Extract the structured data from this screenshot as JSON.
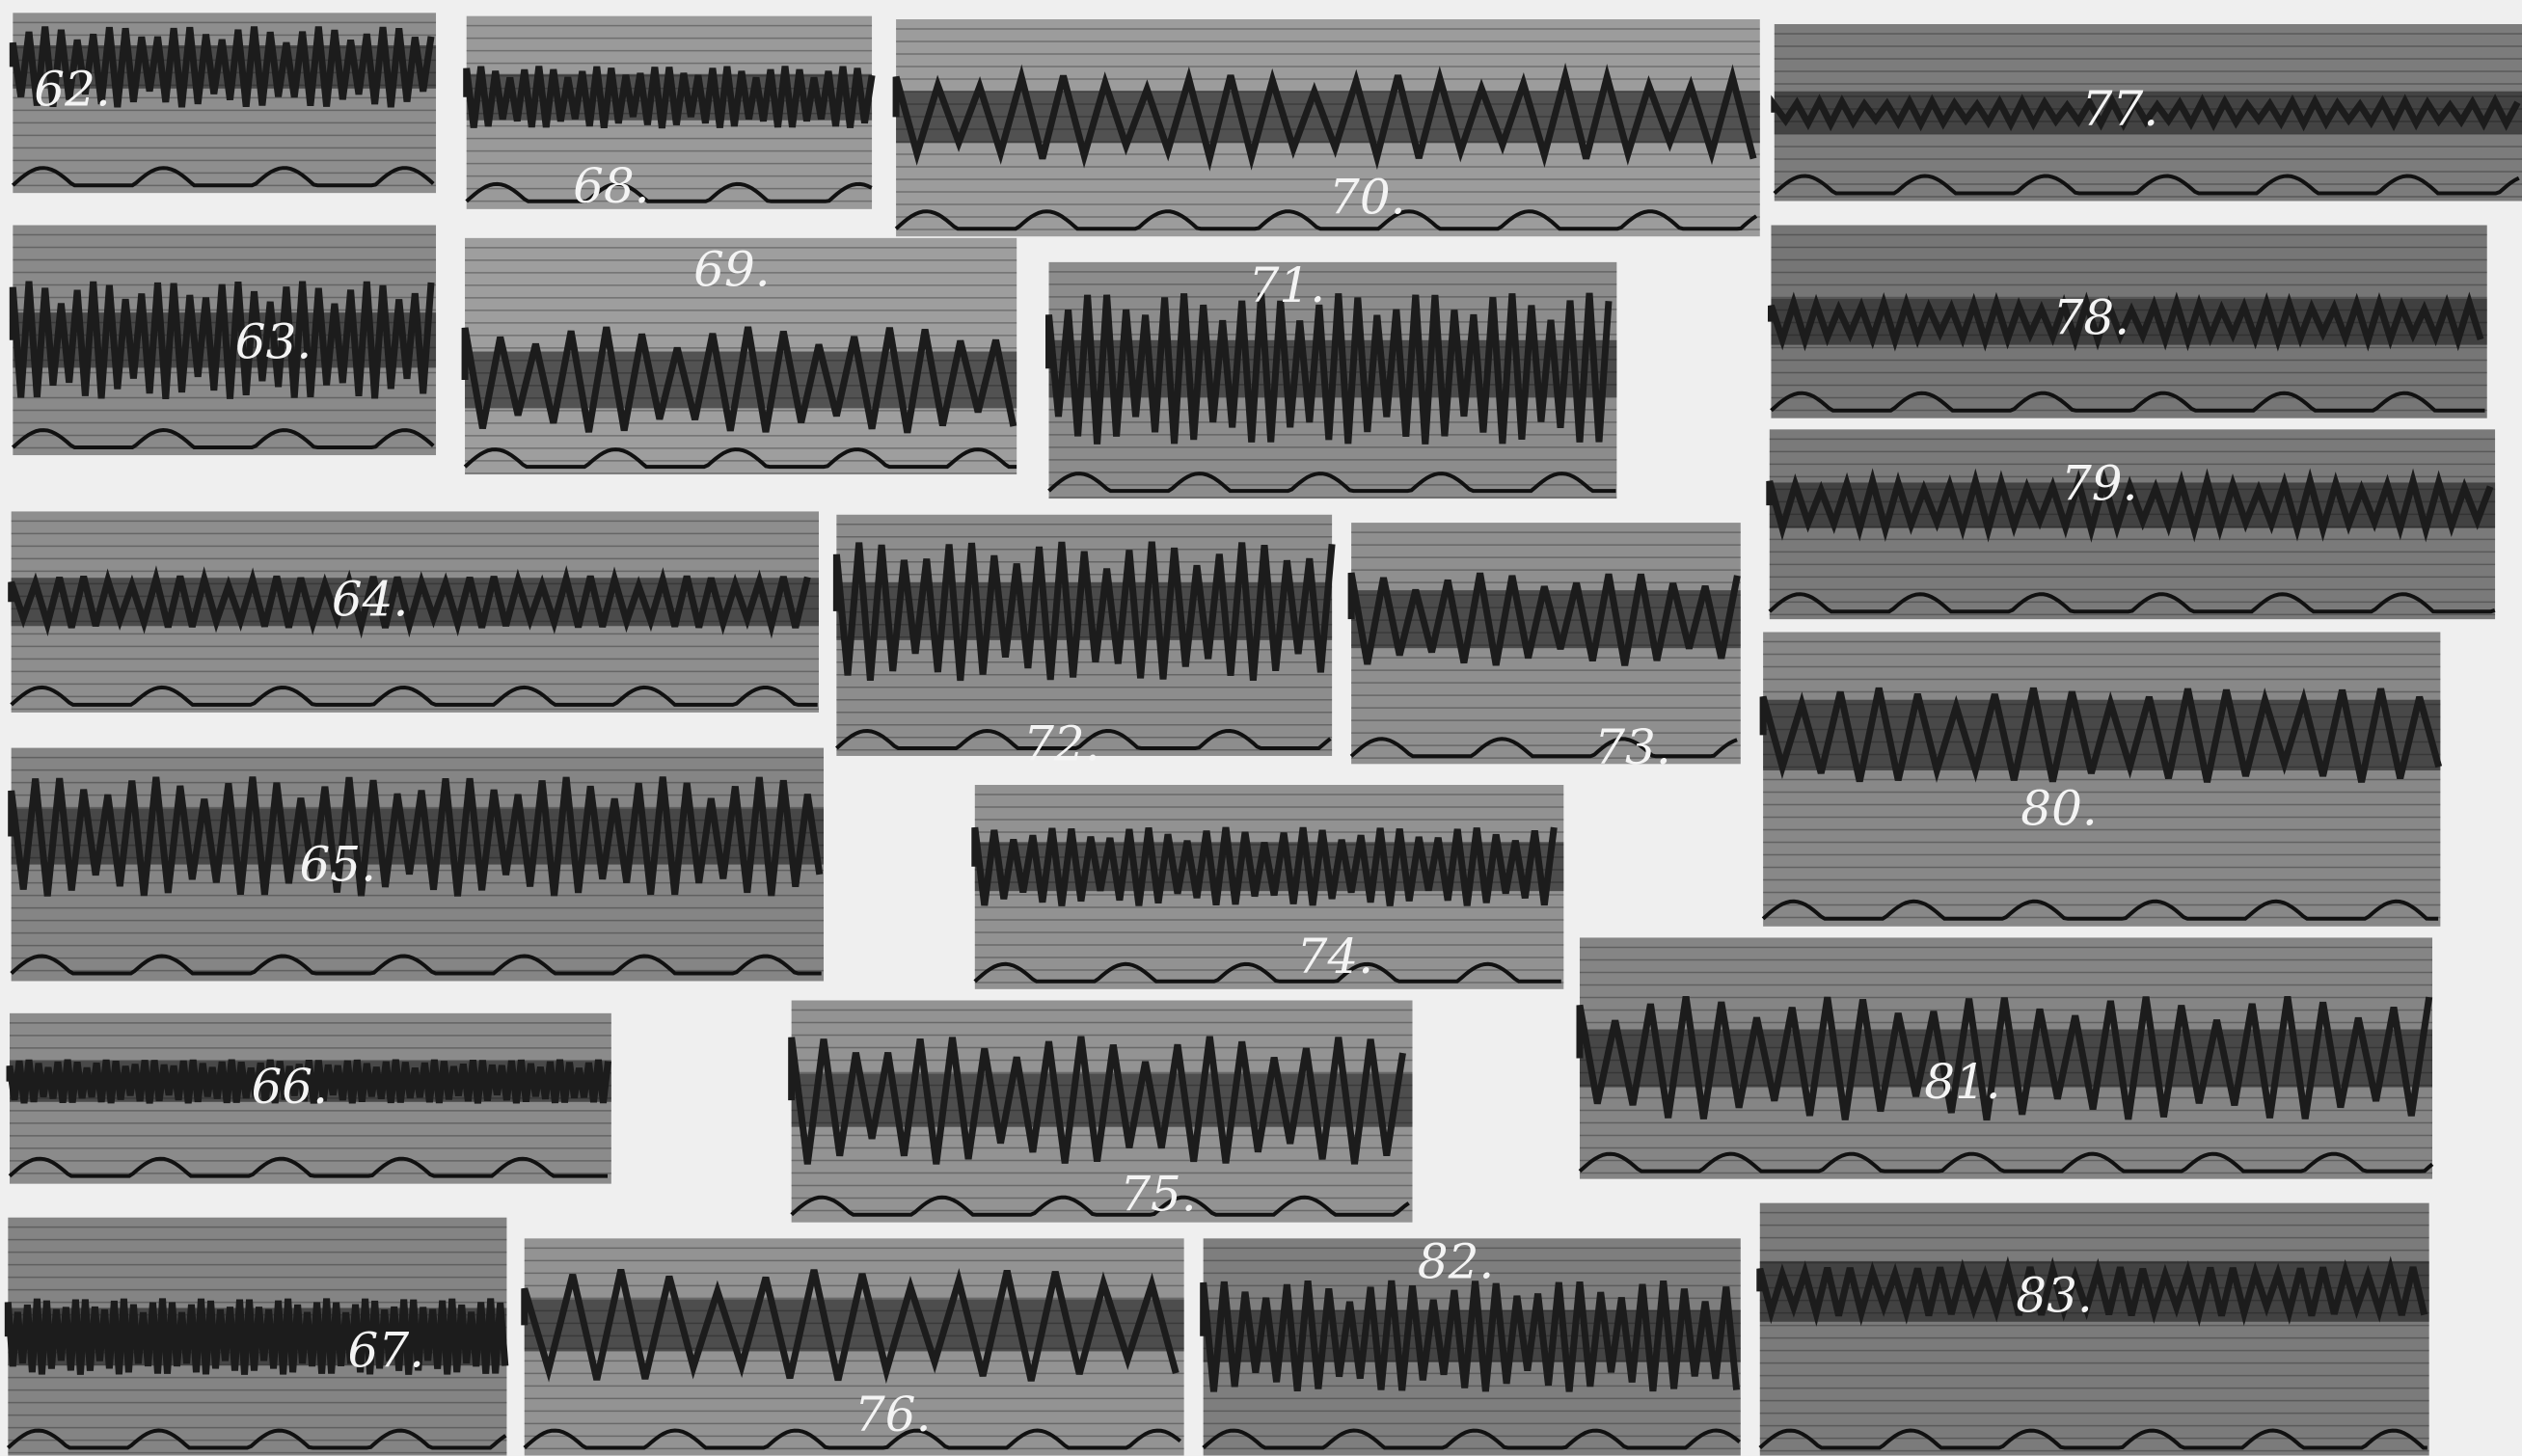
{
  "panels": [
    {
      "label": "62."
    },
    {
      "label": "68."
    },
    {
      "label": "70."
    },
    {
      "label": "77."
    },
    {
      "label": "63."
    },
    {
      "label": "69."
    },
    {
      "label": "71."
    },
    {
      "label": "78."
    },
    {
      "label": "79."
    },
    {
      "label": "64."
    },
    {
      "label": "72."
    },
    {
      "label": "73."
    },
    {
      "label": "80."
    },
    {
      "label": "65."
    },
    {
      "label": "74."
    },
    {
      "label": "81."
    },
    {
      "label": "66."
    },
    {
      "label": "75."
    },
    {
      "label": "67."
    },
    {
      "label": "76."
    },
    {
      "label": "82."
    },
    {
      "label": "83."
    }
  ]
}
